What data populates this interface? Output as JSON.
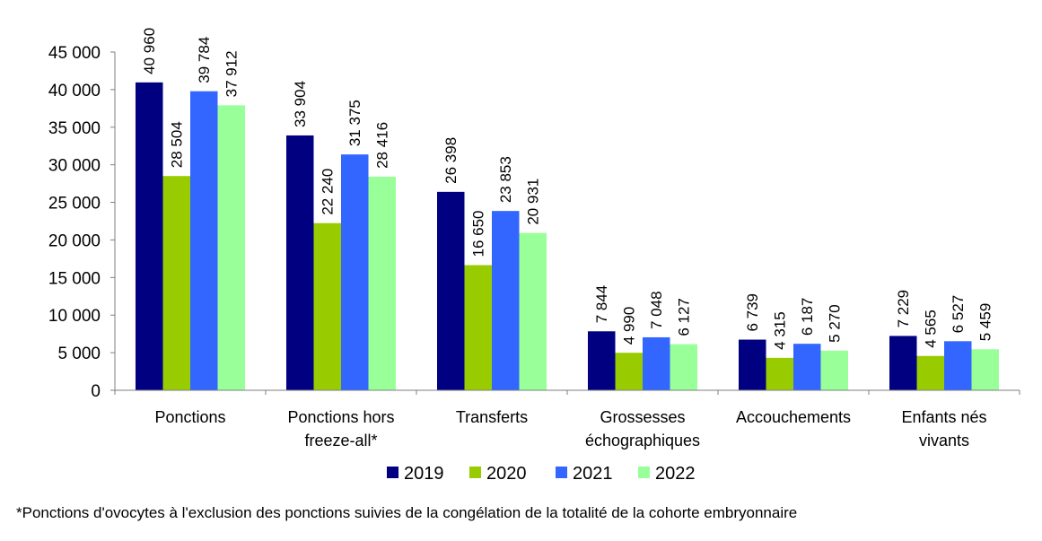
{
  "chart_data": {
    "type": "bar",
    "title": "",
    "xlabel": "",
    "ylabel": "",
    "ylim": [
      0,
      45000
    ],
    "y_ticks": [
      "0",
      "5 000",
      "10 000",
      "15 000",
      "20 000",
      "25 000",
      "30 000",
      "35 000",
      "40 000",
      "45 000"
    ],
    "y_tick_values": [
      0,
      5000,
      10000,
      15000,
      20000,
      25000,
      30000,
      35000,
      40000,
      45000
    ],
    "categories": [
      [
        "Ponctions"
      ],
      [
        "Ponctions hors",
        "freeze-all*"
      ],
      [
        "Transferts"
      ],
      [
        "Grossesses",
        "échographiques"
      ],
      [
        "Accouchements"
      ],
      [
        "Enfants nés",
        "vivants"
      ]
    ],
    "series": [
      {
        "name": "2019",
        "color": "#000080",
        "values": [
          40960,
          33904,
          26398,
          7844,
          6739,
          7229
        ],
        "labels": [
          "40 960",
          "33 904",
          "26 398",
          "7 844",
          "6 739",
          "7 229"
        ]
      },
      {
        "name": "2020",
        "color": "#99CC00",
        "values": [
          28504,
          22240,
          16650,
          4990,
          4315,
          4565
        ],
        "labels": [
          "28 504",
          "22 240",
          "16 650",
          "4 990",
          "4 315",
          "4 565"
        ]
      },
      {
        "name": "2021",
        "color": "#3366FF",
        "values": [
          39784,
          31375,
          23853,
          7048,
          6187,
          6527
        ],
        "labels": [
          "39 784",
          "31 375",
          "23 853",
          "7 048",
          "6 187",
          "6 527"
        ]
      },
      {
        "name": "2022",
        "color": "#99FF99",
        "values": [
          37912,
          28416,
          20931,
          6127,
          5270,
          5459
        ],
        "labels": [
          "37 912",
          "28 416",
          "20 931",
          "6 127",
          "5 270",
          "5 459"
        ]
      }
    ],
    "legend_position": "bottom",
    "grid": false
  },
  "footnote": "*Ponctions d'ovocytes à l'exclusion des ponctions suivies de la congélation de la totalité de la cohorte embryonnaire"
}
